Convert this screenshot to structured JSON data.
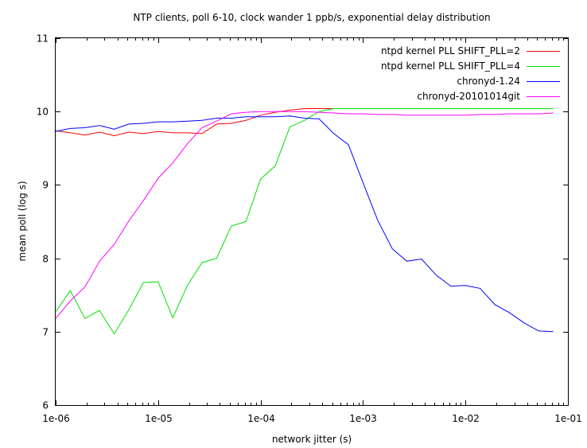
{
  "chart_data": {
    "type": "line",
    "title": "NTP clients, poll 6-10, clock wander 1 ppb/s, exponential delay distribution",
    "xlabel": "network jitter (s)",
    "ylabel": "mean poll (log s)",
    "xscale": "log",
    "xlim": [
      1e-06,
      0.1
    ],
    "ylim": [
      6,
      11
    ],
    "xticks": [
      1e-06,
      1e-05,
      0.0001,
      0.001,
      0.01,
      0.1
    ],
    "xtick_labels": [
      "1e-06",
      "1e-05",
      "1e-04",
      "1e-03",
      "1e-02",
      "1e-01"
    ],
    "yticks": [
      6,
      7,
      8,
      9,
      10,
      11
    ],
    "ytick_labels": [
      "6",
      "7",
      "8",
      "9",
      "10",
      "11"
    ],
    "grid": false,
    "legend_position": "top-right",
    "x": [
      1e-06,
      1.39e-06,
      1.93e-06,
      2.68e-06,
      3.73e-06,
      5.18e-06,
      7.2e-06,
      1e-05,
      1.39e-05,
      1.93e-05,
      2.68e-05,
      3.73e-05,
      5.18e-05,
      7.2e-05,
      0.0001,
      0.000139,
      0.000193,
      0.000268,
      0.000373,
      0.000518,
      0.00072,
      0.001,
      0.00139,
      0.00193,
      0.00268,
      0.00373,
      0.00518,
      0.0072,
      0.01,
      0.0139,
      0.0193,
      0.0268,
      0.0373,
      0.0518,
      0.072
    ],
    "series": [
      {
        "name": "ntpd kernel PLL SHIFT_PLL=2",
        "color": "#ff0000",
        "values": [
          9.74,
          9.71,
          9.68,
          9.72,
          9.67,
          9.72,
          9.7,
          9.73,
          9.71,
          9.71,
          9.7,
          9.83,
          9.84,
          9.88,
          9.95,
          9.99,
          10.02,
          10.04,
          10.04,
          10.04,
          10.04,
          10.04,
          10.04,
          10.04,
          10.04,
          10.04,
          10.04,
          10.04,
          10.04,
          10.04,
          10.04,
          10.04,
          10.04,
          10.04,
          10.04
        ]
      },
      {
        "name": "ntpd kernel PLL SHIFT_PLL=4",
        "color": "#00e000",
        "values": [
          7.27,
          7.56,
          7.18,
          7.29,
          6.97,
          7.3,
          7.67,
          7.68,
          7.19,
          7.63,
          7.94,
          8.0,
          8.44,
          8.5,
          9.08,
          9.26,
          9.79,
          9.88,
          10.0,
          10.04,
          10.04,
          10.04,
          10.04,
          10.04,
          10.04,
          10.04,
          10.04,
          10.04,
          10.04,
          10.04,
          10.04,
          10.04,
          10.04,
          10.04,
          10.04
        ]
      },
      {
        "name": "chronyd-1.24",
        "color": "#0000ff",
        "values": [
          9.73,
          9.77,
          9.78,
          9.81,
          9.76,
          9.83,
          9.84,
          9.86,
          9.86,
          9.87,
          9.88,
          9.91,
          9.91,
          9.93,
          9.93,
          9.93,
          9.94,
          9.91,
          9.9,
          9.7,
          9.55,
          9.03,
          8.52,
          8.13,
          7.96,
          7.99,
          7.77,
          7.62,
          7.63,
          7.59,
          7.37,
          7.26,
          7.12,
          7.01,
          7.0
        ]
      },
      {
        "name": "chronyd-20101014git",
        "color": "#ff00ff",
        "values": [
          7.18,
          7.42,
          7.61,
          7.96,
          8.19,
          8.51,
          8.79,
          9.09,
          9.3,
          9.56,
          9.78,
          9.87,
          9.97,
          9.99,
          10.0,
          10.0,
          10.0,
          10.0,
          9.99,
          9.98,
          9.97,
          9.97,
          9.96,
          9.96,
          9.95,
          9.95,
          9.95,
          9.95,
          9.95,
          9.96,
          9.96,
          9.97,
          9.97,
          9.97,
          9.98
        ]
      }
    ]
  }
}
